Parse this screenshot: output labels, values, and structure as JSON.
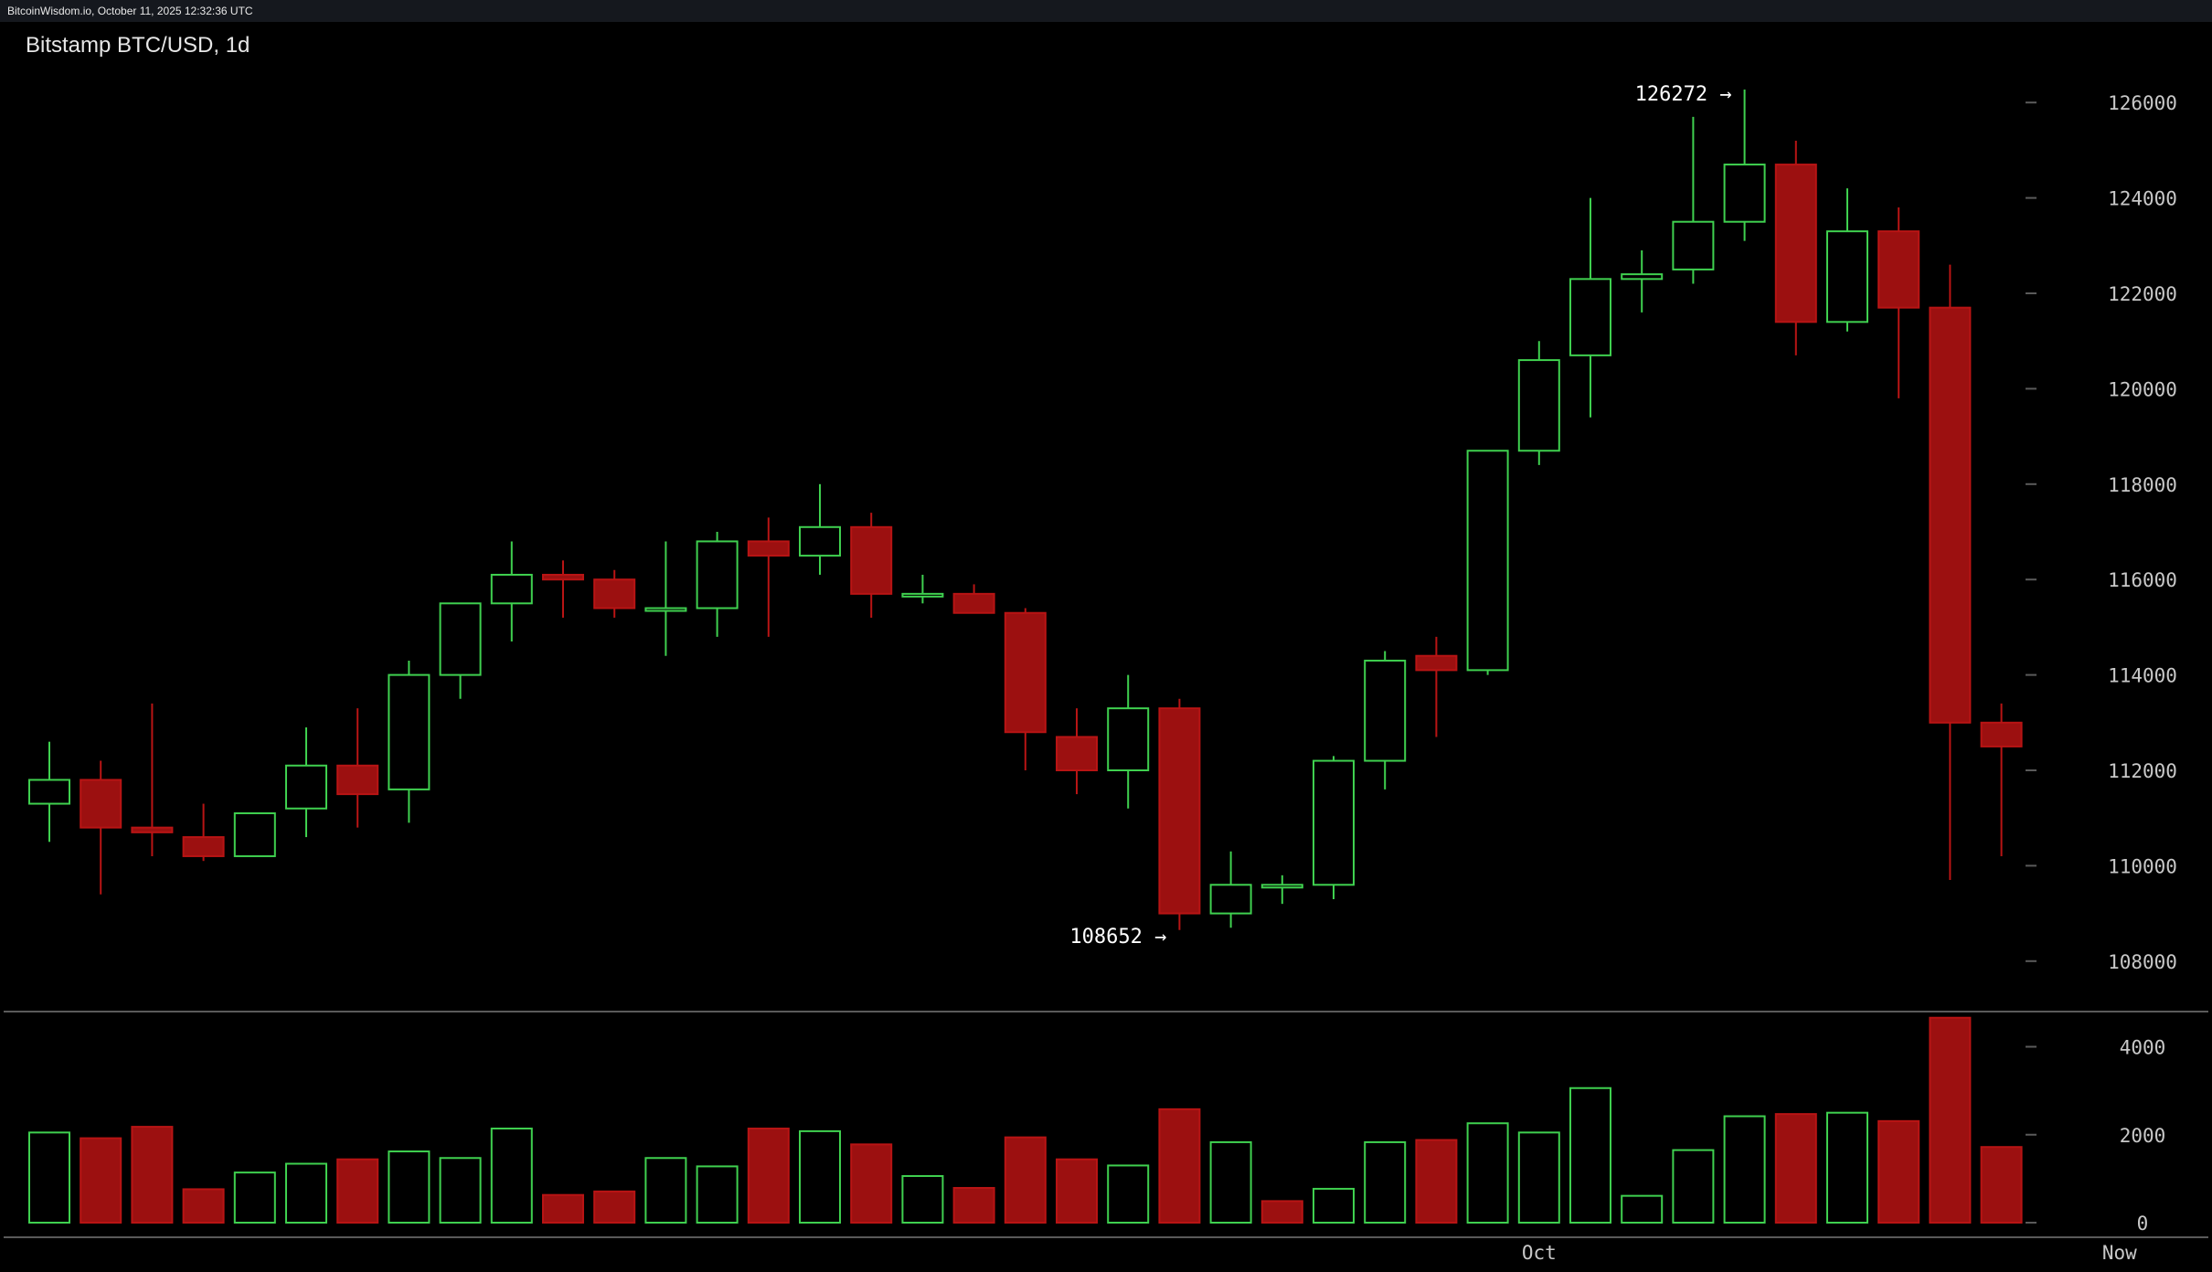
{
  "header": {
    "source": "BitcoinWisdom.io, October 11, 2025 12:32:36 UTC"
  },
  "chart_title": "Bitstamp BTC/USD, 1d",
  "colors": {
    "up": "#3fd04f",
    "down": "#b81414",
    "down_fill": "#9c1010",
    "grid": "#5a5a5a",
    "background": "#000000"
  },
  "chart_data": [
    {
      "type": "candlestick",
      "title": "Bitstamp BTC/USD, 1d",
      "ylim": [
        107000,
        127000
      ],
      "yticks": [
        108000,
        110000,
        112000,
        114000,
        116000,
        118000,
        120000,
        122000,
        124000,
        126000
      ],
      "annotations": [
        {
          "text": "126272 →",
          "value": 126272,
          "index": 33
        },
        {
          "text": "108652 →",
          "value": 108652,
          "index": 22
        }
      ],
      "x_labels": [
        {
          "text": "Oct",
          "index": 29
        },
        {
          "text": "Now",
          "index": 40.3
        }
      ],
      "candles": [
        {
          "o": 111300,
          "h": 112600,
          "l": 110500,
          "c": 111800
        },
        {
          "o": 111800,
          "h": 112200,
          "l": 109400,
          "c": 110800
        },
        {
          "o": 110800,
          "h": 113400,
          "l": 110200,
          "c": 110700
        },
        {
          "o": 110600,
          "h": 111300,
          "l": 110100,
          "c": 110200
        },
        {
          "o": 110200,
          "h": 111100,
          "l": 110200,
          "c": 111100
        },
        {
          "o": 111200,
          "h": 112900,
          "l": 110600,
          "c": 112100
        },
        {
          "o": 112100,
          "h": 113300,
          "l": 110800,
          "c": 111500
        },
        {
          "o": 111600,
          "h": 114300,
          "l": 110900,
          "c": 114000
        },
        {
          "o": 114000,
          "h": 115500,
          "l": 113500,
          "c": 115500
        },
        {
          "o": 115500,
          "h": 116800,
          "l": 114700,
          "c": 116100
        },
        {
          "o": 116100,
          "h": 116400,
          "l": 115200,
          "c": 116000
        },
        {
          "o": 116000,
          "h": 116200,
          "l": 115200,
          "c": 115400
        },
        {
          "o": 115400,
          "h": 116800,
          "l": 114400,
          "c": 115400
        },
        {
          "o": 115400,
          "h": 117000,
          "l": 114800,
          "c": 116800
        },
        {
          "o": 116800,
          "h": 117300,
          "l": 114800,
          "c": 116500
        },
        {
          "o": 116500,
          "h": 118000,
          "l": 116100,
          "c": 117100
        },
        {
          "o": 117100,
          "h": 117400,
          "l": 115200,
          "c": 115700
        },
        {
          "o": 115700,
          "h": 116100,
          "l": 115500,
          "c": 115700
        },
        {
          "o": 115700,
          "h": 115900,
          "l": 115300,
          "c": 115300
        },
        {
          "o": 115300,
          "h": 115400,
          "l": 112000,
          "c": 112800
        },
        {
          "o": 112700,
          "h": 113300,
          "l": 111500,
          "c": 112000
        },
        {
          "o": 112000,
          "h": 114000,
          "l": 111200,
          "c": 113300
        },
        {
          "o": 113300,
          "h": 113500,
          "l": 108652,
          "c": 109000
        },
        {
          "o": 109000,
          "h": 110300,
          "l": 108700,
          "c": 109600
        },
        {
          "o": 109600,
          "h": 109800,
          "l": 109200,
          "c": 109600
        },
        {
          "o": 109600,
          "h": 112300,
          "l": 109300,
          "c": 112200
        },
        {
          "o": 112200,
          "h": 114500,
          "l": 111600,
          "c": 114300
        },
        {
          "o": 114400,
          "h": 114800,
          "l": 112700,
          "c": 114100
        },
        {
          "o": 114100,
          "h": 118700,
          "l": 114000,
          "c": 118700
        },
        {
          "o": 118700,
          "h": 121000,
          "l": 118400,
          "c": 120600
        },
        {
          "o": 120700,
          "h": 124000,
          "l": 119400,
          "c": 122300
        },
        {
          "o": 122300,
          "h": 122900,
          "l": 121600,
          "c": 122400
        },
        {
          "o": 122500,
          "h": 125700,
          "l": 122200,
          "c": 123500
        },
        {
          "o": 123500,
          "h": 126272,
          "l": 123100,
          "c": 124700
        },
        {
          "o": 124700,
          "h": 125200,
          "l": 120700,
          "c": 121400
        },
        {
          "o": 121400,
          "h": 124200,
          "l": 121200,
          "c": 123300
        },
        {
          "o": 123300,
          "h": 123800,
          "l": 119800,
          "c": 121700
        },
        {
          "o": 121700,
          "h": 122600,
          "l": 109700,
          "c": 113000
        },
        {
          "o": 113000,
          "h": 113400,
          "l": 110200,
          "c": 112500
        }
      ]
    },
    {
      "type": "bar",
      "title": "",
      "ylim": [
        0,
        4800
      ],
      "yticks": [
        0,
        2000,
        4000
      ],
      "values": [
        2050,
        1920,
        2180,
        760,
        1140,
        1340,
        1440,
        1620,
        1470,
        2140,
        630,
        710,
        1470,
        1280,
        2140,
        2080,
        1780,
        1060,
        790,
        1940,
        1440,
        1300,
        2580,
        1830,
        490,
        770,
        1830,
        1880,
        2260,
        2050,
        3060,
        610,
        1650,
        2420,
        2470,
        2500,
        2310,
        4660,
        1720
      ],
      "directions": [
        "up",
        "down",
        "down",
        "down",
        "up",
        "up",
        "down",
        "up",
        "up",
        "up",
        "down",
        "down",
        "up",
        "up",
        "down",
        "up",
        "down",
        "up",
        "down",
        "down",
        "down",
        "up",
        "down",
        "up",
        "down",
        "up",
        "up",
        "down",
        "up",
        "up",
        "up",
        "up",
        "up",
        "up",
        "down",
        "up",
        "down",
        "down",
        "down"
      ]
    }
  ]
}
